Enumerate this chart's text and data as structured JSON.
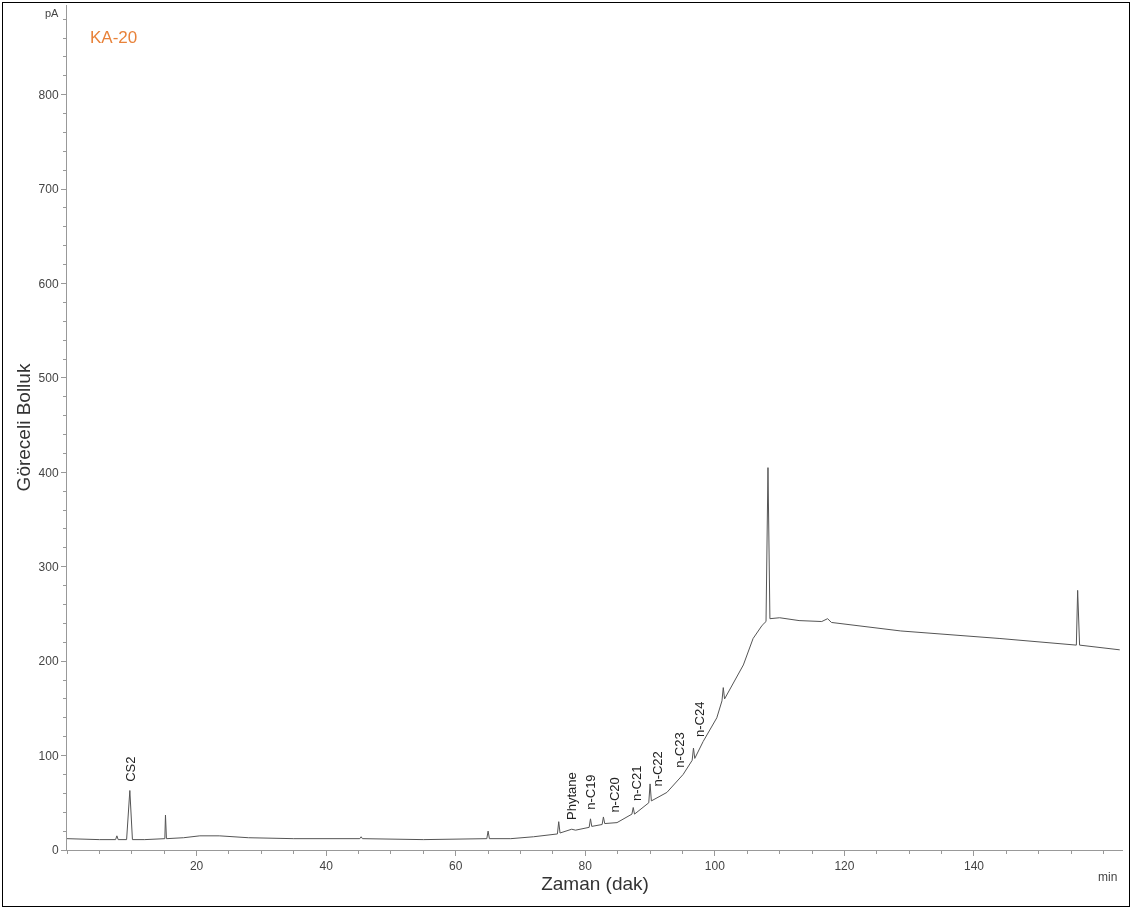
{
  "chart_data": {
    "type": "line",
    "title": "KA-20",
    "xlabel": "Zaman (dak)",
    "ylabel": "Göreceli Bolluk",
    "xlim": [
      0,
      163
    ],
    "xticks": [
      20,
      40,
      60,
      80,
      100,
      120,
      140
    ],
    "ylim": [
      0,
      895
    ],
    "yticks": [
      0,
      100,
      200,
      300,
      400,
      500,
      600,
      700,
      800
    ],
    "marker": "none",
    "line_style": "solid",
    "series": [
      {
        "color": "#555555",
        "x": [
          0,
          5,
          7.5,
          7.7,
          7.9,
          9.2,
          9.7,
          10.1,
          12,
          15.1,
          15.2,
          15.35,
          18,
          20.5,
          23.5,
          28,
          35,
          45.2,
          45.4,
          45.6,
          55,
          64.8,
          65,
          65.2,
          68.5,
          72,
          75.7,
          75.9,
          76.1,
          77.9,
          78.5,
          80.6,
          80.8,
          81,
          82.6,
          82.8,
          83,
          84.9,
          87.2,
          87.4,
          87.6,
          89.8,
          90,
          90.2,
          92.6,
          95.1,
          96.5,
          96.7,
          96.9,
          98.2,
          100.3,
          101.1,
          101.3,
          101.5,
          104.4,
          105.9,
          107.3,
          107.9,
          108.2,
          108.5,
          110,
          113,
          116.5,
          117.4,
          118,
          128.7,
          144,
          155.8,
          156,
          156.3,
          162.5
        ],
        "values": [
          12,
          11,
          11,
          15,
          11,
          11,
          63,
          11,
          11,
          12,
          37,
          12,
          13,
          15,
          15,
          13,
          12,
          12,
          14,
          12,
          11,
          12,
          20,
          12,
          12,
          14,
          17,
          30,
          18,
          22,
          21,
          24,
          33,
          25,
          27,
          35,
          28,
          29,
          38,
          45,
          38,
          50,
          70,
          52,
          61,
          80,
          95,
          108,
          97,
          115,
          140,
          158,
          172,
          160,
          196,
          224,
          238,
          242,
          405,
          245,
          246,
          243,
          242,
          245,
          241,
          232,
          224,
          217,
          275,
          217,
          212
        ]
      }
    ],
    "annotations": [
      {
        "text": "CS2",
        "x": 9.7,
        "y": 63
      },
      {
        "text": "Phytane",
        "x": 77.9,
        "y": 22
      },
      {
        "text": "n-C19",
        "x": 80.8,
        "y": 33
      },
      {
        "text": "n-C20",
        "x": 84.5,
        "y": 30
      },
      {
        "text": "n-C21",
        "x": 88,
        "y": 42
      },
      {
        "text": "n-C22",
        "x": 91.2,
        "y": 58
      },
      {
        "text": "n-C23",
        "x": 94.6,
        "y": 78
      },
      {
        "text": "n-C24",
        "x": 97.6,
        "y": 110
      },
      "pA",
      "min"
    ]
  }
}
